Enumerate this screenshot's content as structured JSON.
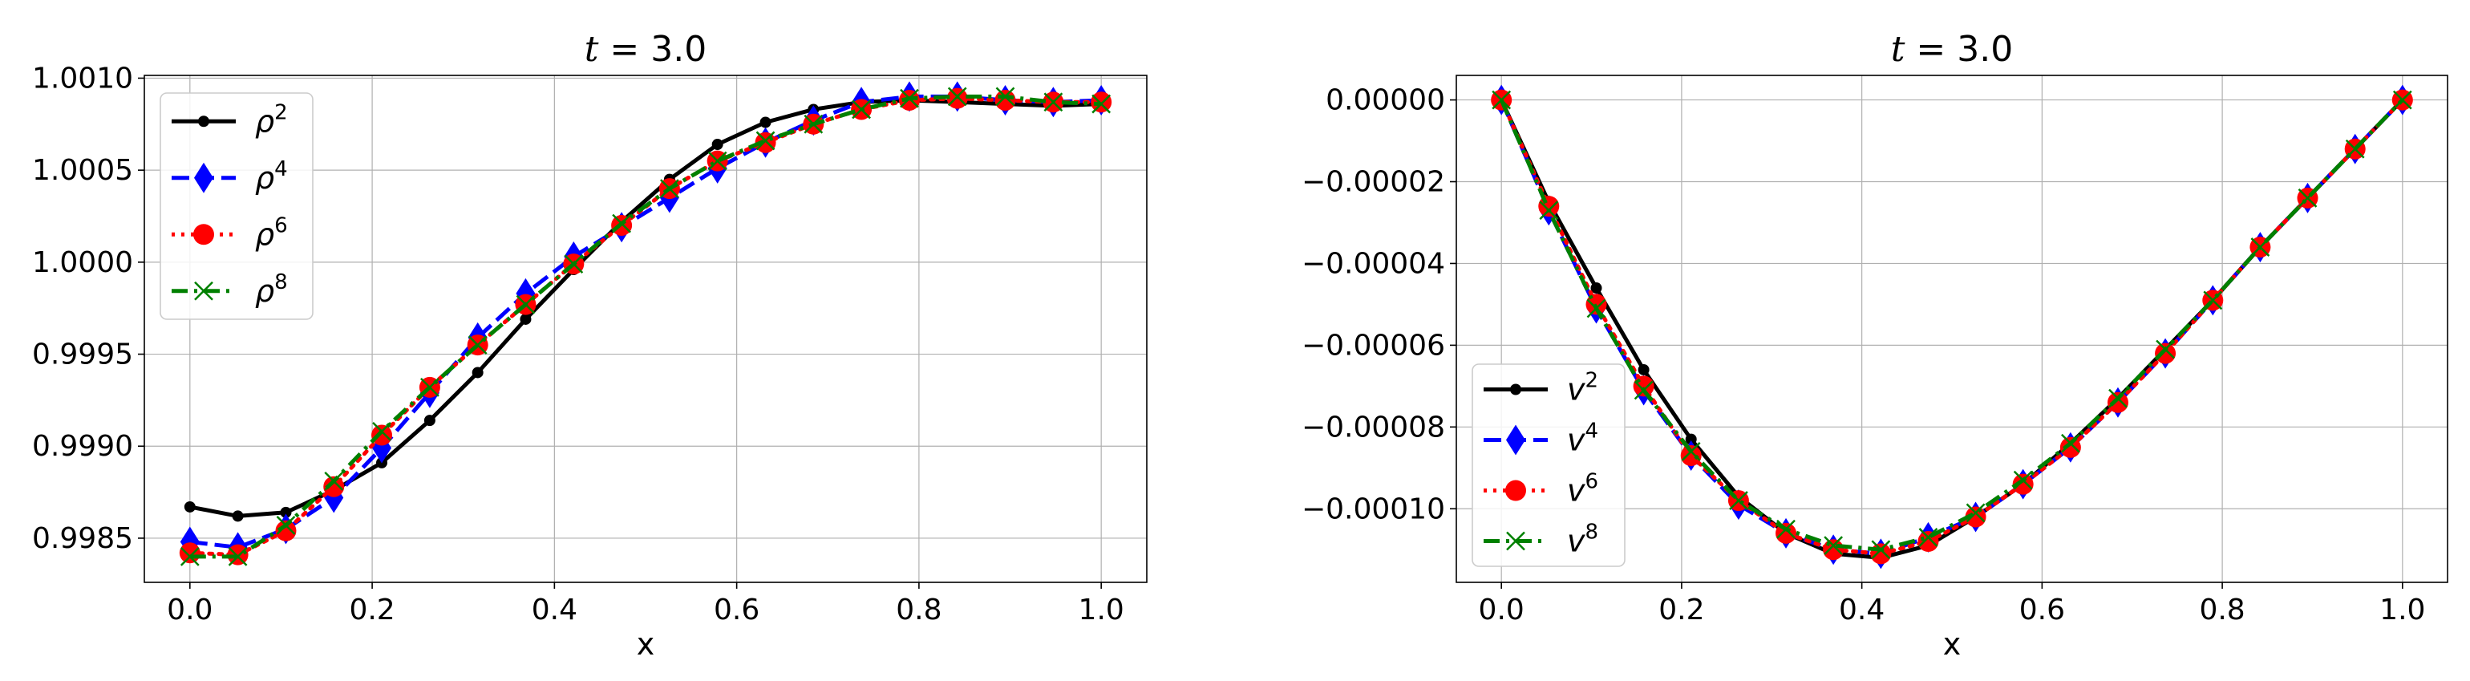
{
  "chart_data": [
    {
      "type": "line",
      "title": "t = 3.0",
      "title_italic_part": "t",
      "title_rest": " = 3.0",
      "xlabel": "x",
      "ylabel": "",
      "xlim": [
        -0.05,
        1.05
      ],
      "ylim": [
        0.99826,
        1.001015
      ],
      "xticks": [
        0.0,
        0.2,
        0.4,
        0.6,
        0.8,
        1.0
      ],
      "xtick_labels": [
        "0.0",
        "0.2",
        "0.4",
        "0.6",
        "0.8",
        "1.0"
      ],
      "yticks": [
        0.9985,
        0.999,
        0.9995,
        1.0,
        1.0005,
        1.001
      ],
      "ytick_labels": [
        "0.9985",
        "0.9990",
        "0.9995",
        "1.0000",
        "1.0005",
        "1.0010"
      ],
      "grid": true,
      "legend_position": "upper-left",
      "series": [
        {
          "name": "ρ²",
          "legend_base": "ρ",
          "legend_sup": "2",
          "color": "#000000",
          "dash": "solid",
          "marker": "dot",
          "x": [
            0.0,
            0.0526,
            0.1053,
            0.1579,
            0.2105,
            0.2632,
            0.3158,
            0.3684,
            0.4211,
            0.4737,
            0.5263,
            0.5789,
            0.6316,
            0.6842,
            0.7368,
            0.7895,
            0.8421,
            0.8947,
            0.9474,
            1.0
          ],
          "values": [
            0.99867,
            0.99862,
            0.99864,
            0.99876,
            0.99891,
            0.99914,
            0.9994,
            0.99969,
            0.99996,
            1.00022,
            1.00045,
            1.00064,
            1.00076,
            1.00083,
            1.00087,
            1.00088,
            1.00087,
            1.00086,
            1.00085,
            1.00086
          ]
        },
        {
          "name": "ρ⁴",
          "legend_base": "ρ",
          "legend_sup": "4",
          "color": "#0000ff",
          "dash": "dashed",
          "marker": "diamond",
          "x": [
            0.0,
            0.0526,
            0.1053,
            0.1579,
            0.2105,
            0.2632,
            0.3158,
            0.3684,
            0.4211,
            0.4737,
            0.5263,
            0.5789,
            0.6316,
            0.6842,
            0.7368,
            0.7895,
            0.8421,
            0.8947,
            0.9474,
            1.0
          ],
          "values": [
            0.99848,
            0.99845,
            0.99855,
            0.99872,
            0.99899,
            0.99929,
            0.99959,
            0.99983,
            1.00003,
            1.00019,
            1.00035,
            1.00051,
            1.00065,
            1.00077,
            1.00087,
            1.0009,
            1.0009,
            1.00088,
            1.00087,
            1.00088
          ]
        },
        {
          "name": "ρ⁶",
          "legend_base": "ρ",
          "legend_sup": "6",
          "color": "#ff0000",
          "dash": "dotted",
          "marker": "circle",
          "x": [
            0.0,
            0.0526,
            0.1053,
            0.1579,
            0.2105,
            0.2632,
            0.3158,
            0.3684,
            0.4211,
            0.4737,
            0.5263,
            0.5789,
            0.6316,
            0.6842,
            0.7368,
            0.7895,
            0.8421,
            0.8947,
            0.9474,
            1.0
          ],
          "values": [
            0.99842,
            0.99841,
            0.99854,
            0.99878,
            0.99906,
            0.99932,
            0.99955,
            0.99977,
            0.99999,
            1.0002,
            1.0004,
            1.00055,
            1.00065,
            1.00075,
            1.00083,
            1.00088,
            1.00089,
            1.00088,
            1.00087,
            1.00087
          ]
        },
        {
          "name": "ρ⁸",
          "legend_base": "ρ",
          "legend_sup": "8",
          "color": "#008000",
          "dash": "dashdot",
          "marker": "x",
          "x": [
            0.0,
            0.0526,
            0.1053,
            0.1579,
            0.2105,
            0.2632,
            0.3158,
            0.3684,
            0.4211,
            0.4737,
            0.5263,
            0.5789,
            0.6316,
            0.6842,
            0.7368,
            0.7895,
            0.8421,
            0.8947,
            0.9474,
            1.0
          ],
          "values": [
            0.9984,
            0.9984,
            0.99857,
            0.99881,
            0.99908,
            0.99932,
            0.99955,
            0.99977,
            0.99999,
            1.00021,
            1.0004,
            1.00055,
            1.00066,
            1.00075,
            1.00083,
            1.00089,
            1.0009,
            1.0009,
            1.00087,
            1.00086
          ]
        }
      ]
    },
    {
      "type": "line",
      "title": "t = 3.0",
      "title_italic_part": "t",
      "title_rest": " = 3.0",
      "xlabel": "x",
      "ylabel": "",
      "xlim": [
        -0.05,
        1.05
      ],
      "ylim": [
        -0.000118,
        6e-06
      ],
      "xticks": [
        0.0,
        0.2,
        0.4,
        0.6,
        0.8,
        1.0
      ],
      "xtick_labels": [
        "0.0",
        "0.2",
        "0.4",
        "0.6",
        "0.8",
        "1.0"
      ],
      "yticks": [
        0.0,
        -2e-05,
        -4e-05,
        -6e-05,
        -8e-05,
        -0.0001
      ],
      "ytick_labels": [
        "0.00000",
        "−0.00002",
        "−0.00004",
        "−0.00006",
        "−0.00008",
        "−0.00010"
      ],
      "grid": true,
      "legend_position": "lower-left",
      "series": [
        {
          "name": "v²",
          "legend_base": "v",
          "legend_sup": "2",
          "color": "#000000",
          "dash": "solid",
          "marker": "dot",
          "x": [
            0.0,
            0.0526,
            0.1053,
            0.1579,
            0.2105,
            0.2632,
            0.3158,
            0.3684,
            0.4211,
            0.4737,
            0.5263,
            0.5789,
            0.6316,
            0.6842,
            0.7368,
            0.7895,
            0.8421,
            0.8947,
            0.9474,
            1.0
          ],
          "values": [
            0.0,
            -2.5e-05,
            -4.6e-05,
            -6.6e-05,
            -8.3e-05,
            -9.7e-05,
            -0.000106,
            -0.000111,
            -0.000112,
            -0.000109,
            -0.000102,
            -9.4e-05,
            -8.4e-05,
            -7.3e-05,
            -6.1e-05,
            -4.9e-05,
            -3.6e-05,
            -2.4e-05,
            -1.2e-05,
            0.0
          ]
        },
        {
          "name": "v⁴",
          "legend_base": "v",
          "legend_sup": "4",
          "color": "#0000ff",
          "dash": "dashed",
          "marker": "diamond",
          "x": [
            0.0,
            0.0526,
            0.1053,
            0.1579,
            0.2105,
            0.2632,
            0.3158,
            0.3684,
            0.4211,
            0.4737,
            0.5263,
            0.5789,
            0.6316,
            0.6842,
            0.7368,
            0.7895,
            0.8421,
            0.8947,
            0.9474,
            1.0
          ],
          "values": [
            0.0,
            -2.7e-05,
            -5.1e-05,
            -7.1e-05,
            -8.7e-05,
            -9.9e-05,
            -0.000106,
            -0.00011,
            -0.000111,
            -0.000107,
            -0.000102,
            -9.4e-05,
            -8.5e-05,
            -7.4e-05,
            -6.2e-05,
            -4.9e-05,
            -3.6e-05,
            -2.4e-05,
            -1.2e-05,
            0.0
          ]
        },
        {
          "name": "v⁶",
          "legend_base": "v",
          "legend_sup": "6",
          "color": "#ff0000",
          "dash": "dotted",
          "marker": "circle",
          "x": [
            0.0,
            0.0526,
            0.1053,
            0.1579,
            0.2105,
            0.2632,
            0.3158,
            0.3684,
            0.4211,
            0.4737,
            0.5263,
            0.5789,
            0.6316,
            0.6842,
            0.7368,
            0.7895,
            0.8421,
            0.8947,
            0.9474,
            1.0
          ],
          "values": [
            0.0,
            -2.6e-05,
            -5e-05,
            -7e-05,
            -8.7e-05,
            -9.8e-05,
            -0.000106,
            -0.00011,
            -0.000111,
            -0.000108,
            -0.000102,
            -9.4e-05,
            -8.5e-05,
            -7.4e-05,
            -6.2e-05,
            -4.9e-05,
            -3.6e-05,
            -2.4e-05,
            -1.2e-05,
            0.0
          ]
        },
        {
          "name": "v⁸",
          "legend_base": "v",
          "legend_sup": "8",
          "color": "#008000",
          "dash": "dashdot",
          "marker": "x",
          "x": [
            0.0,
            0.0526,
            0.1053,
            0.1579,
            0.2105,
            0.2632,
            0.3158,
            0.3684,
            0.4211,
            0.4737,
            0.5263,
            0.5789,
            0.6316,
            0.6842,
            0.7368,
            0.7895,
            0.8421,
            0.8947,
            0.9474,
            1.0
          ],
          "values": [
            0.0,
            -2.7e-05,
            -5.1e-05,
            -7.1e-05,
            -8.6e-05,
            -9.8e-05,
            -0.000105,
            -0.000109,
            -0.00011,
            -0.000107,
            -0.000101,
            -9.3e-05,
            -8.4e-05,
            -7.3e-05,
            -6.1e-05,
            -4.9e-05,
            -3.6e-05,
            -2.4e-05,
            -1.2e-05,
            0.0
          ]
        }
      ]
    }
  ]
}
